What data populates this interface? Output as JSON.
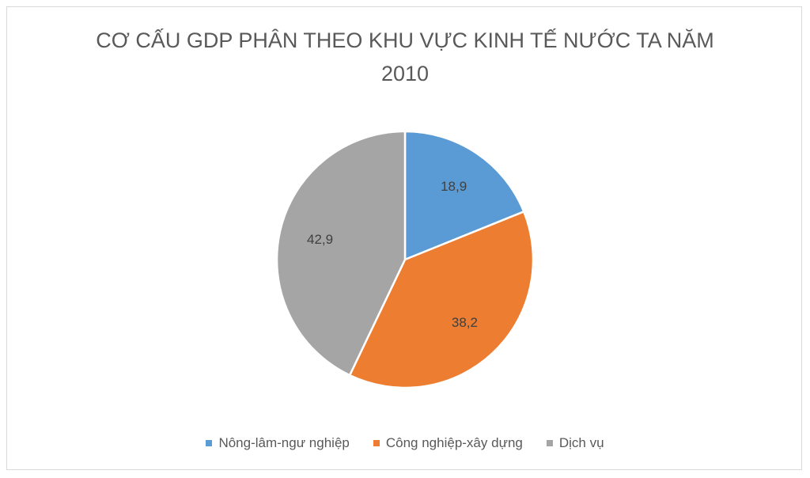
{
  "chart_data": {
    "type": "pie",
    "title": "CƠ CẤU GDP PHÂN THEO KHU VỰC KINH TẾ NƯỚC TA NĂM 2010",
    "categories": [
      "Nông-lâm-ngư nghiệp",
      "Công nghiệp-xây dựng",
      "Dịch vụ"
    ],
    "values": [
      18.9,
      38.2,
      42.9
    ],
    "value_labels": [
      "18,9",
      "38,2",
      "42,9"
    ],
    "colors": [
      "#5b9bd5",
      "#ed7d31",
      "#a5a5a5"
    ],
    "legend": "bottom"
  }
}
